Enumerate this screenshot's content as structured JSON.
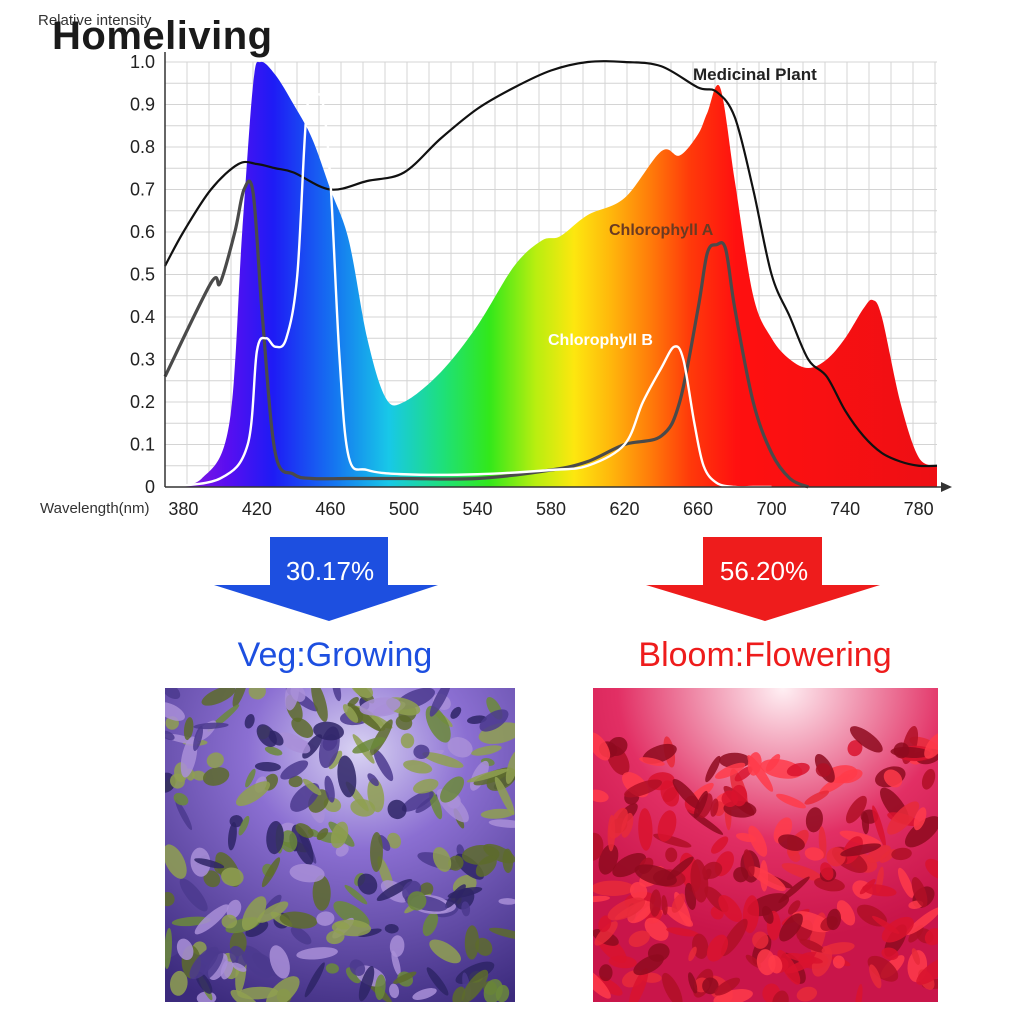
{
  "watermark": "Homeliving",
  "chart_data": {
    "type": "area",
    "ylabel": "Relative intensity",
    "xlabel": "Wavelength(nm)",
    "ylim": [
      0,
      1.0
    ],
    "xlim": [
      370,
      790
    ],
    "x_ticks": [
      380,
      420,
      460,
      500,
      540,
      580,
      620,
      660,
      700,
      740,
      780
    ],
    "y_ticks": [
      0,
      0.1,
      0.2,
      0.3,
      0.4,
      0.5,
      0.6,
      0.7,
      0.8,
      0.9,
      1.0
    ],
    "y_tick_labels": [
      "0",
      "0.1",
      "0.2",
      "0.3",
      "0.4",
      "0.5",
      "0.6",
      "0.7",
      "0.8",
      "0.9",
      "1.0"
    ],
    "grid": true,
    "series": [
      {
        "role": "led-spectrum",
        "x": [
          370,
          390,
          405,
          412,
          418,
          422,
          430,
          440,
          450,
          460,
          470,
          480,
          490,
          500,
          520,
          540,
          560,
          575,
          585,
          600,
          620,
          640,
          650,
          660,
          665,
          672,
          680,
          690,
          700,
          710,
          720,
          730,
          740,
          750,
          755,
          760,
          770,
          780,
          790
        ],
        "y": [
          0.0,
          0.02,
          0.15,
          0.6,
          0.95,
          1.0,
          0.97,
          0.9,
          0.82,
          0.7,
          0.58,
          0.35,
          0.21,
          0.2,
          0.27,
          0.38,
          0.52,
          0.58,
          0.59,
          0.64,
          0.68,
          0.79,
          0.78,
          0.83,
          0.88,
          0.94,
          0.72,
          0.45,
          0.35,
          0.3,
          0.28,
          0.3,
          0.35,
          0.42,
          0.44,
          0.4,
          0.2,
          0.07,
          0.05
        ]
      },
      {
        "name": "Medicinal Plant",
        "x": [
          370,
          380,
          395,
          410,
          420,
          430,
          440,
          460,
          480,
          500,
          520,
          540,
          560,
          580,
          600,
          620,
          640,
          660,
          670,
          680,
          690,
          700,
          710,
          720,
          730,
          740,
          750,
          760,
          770,
          780,
          790
        ],
        "y": [
          0.52,
          0.6,
          0.7,
          0.76,
          0.76,
          0.75,
          0.74,
          0.7,
          0.72,
          0.74,
          0.82,
          0.89,
          0.94,
          0.98,
          1.0,
          1.0,
          0.99,
          0.94,
          0.93,
          0.87,
          0.7,
          0.5,
          0.4,
          0.3,
          0.26,
          0.18,
          0.12,
          0.08,
          0.06,
          0.05,
          0.05
        ]
      },
      {
        "name": "Chlorophyll A",
        "x": [
          370,
          395,
          400,
          408,
          413,
          418,
          423,
          430,
          440,
          450,
          470,
          500,
          540,
          580,
          600,
          620,
          640,
          650,
          660,
          665,
          670,
          675,
          680,
          690,
          700,
          710,
          720
        ],
        "y": [
          0.26,
          0.48,
          0.48,
          0.6,
          0.7,
          0.69,
          0.4,
          0.08,
          0.03,
          0.02,
          0.02,
          0.02,
          0.02,
          0.04,
          0.06,
          0.1,
          0.12,
          0.2,
          0.42,
          0.55,
          0.57,
          0.56,
          0.42,
          0.2,
          0.08,
          0.02,
          0.0
        ]
      },
      {
        "name": "Chlorophyll B",
        "x": [
          370,
          400,
          415,
          420,
          425,
          430,
          436,
          442,
          447,
          452,
          456,
          460,
          465,
          470,
          480,
          500,
          540,
          580,
          600,
          620,
          630,
          640,
          647,
          652,
          658,
          663,
          670,
          680,
          690,
          700
        ],
        "y": [
          0.0,
          0.02,
          0.1,
          0.32,
          0.35,
          0.33,
          0.35,
          0.5,
          0.88,
          0.92,
          0.9,
          0.72,
          0.3,
          0.07,
          0.04,
          0.03,
          0.03,
          0.04,
          0.05,
          0.1,
          0.2,
          0.28,
          0.33,
          0.3,
          0.15,
          0.05,
          0.01,
          0.0,
          0.0,
          0.0
        ]
      }
    ],
    "annotations": [
      "Medicinal Plant",
      "Chlorophyll A",
      "Chlorophyll B"
    ]
  },
  "veg": {
    "percent": "30.17%",
    "label": "Veg:Growing",
    "color": "#1d4fe0"
  },
  "bloom": {
    "percent": "56.20%",
    "label": "Bloom:Flowering",
    "color": "#ee1c1c"
  }
}
